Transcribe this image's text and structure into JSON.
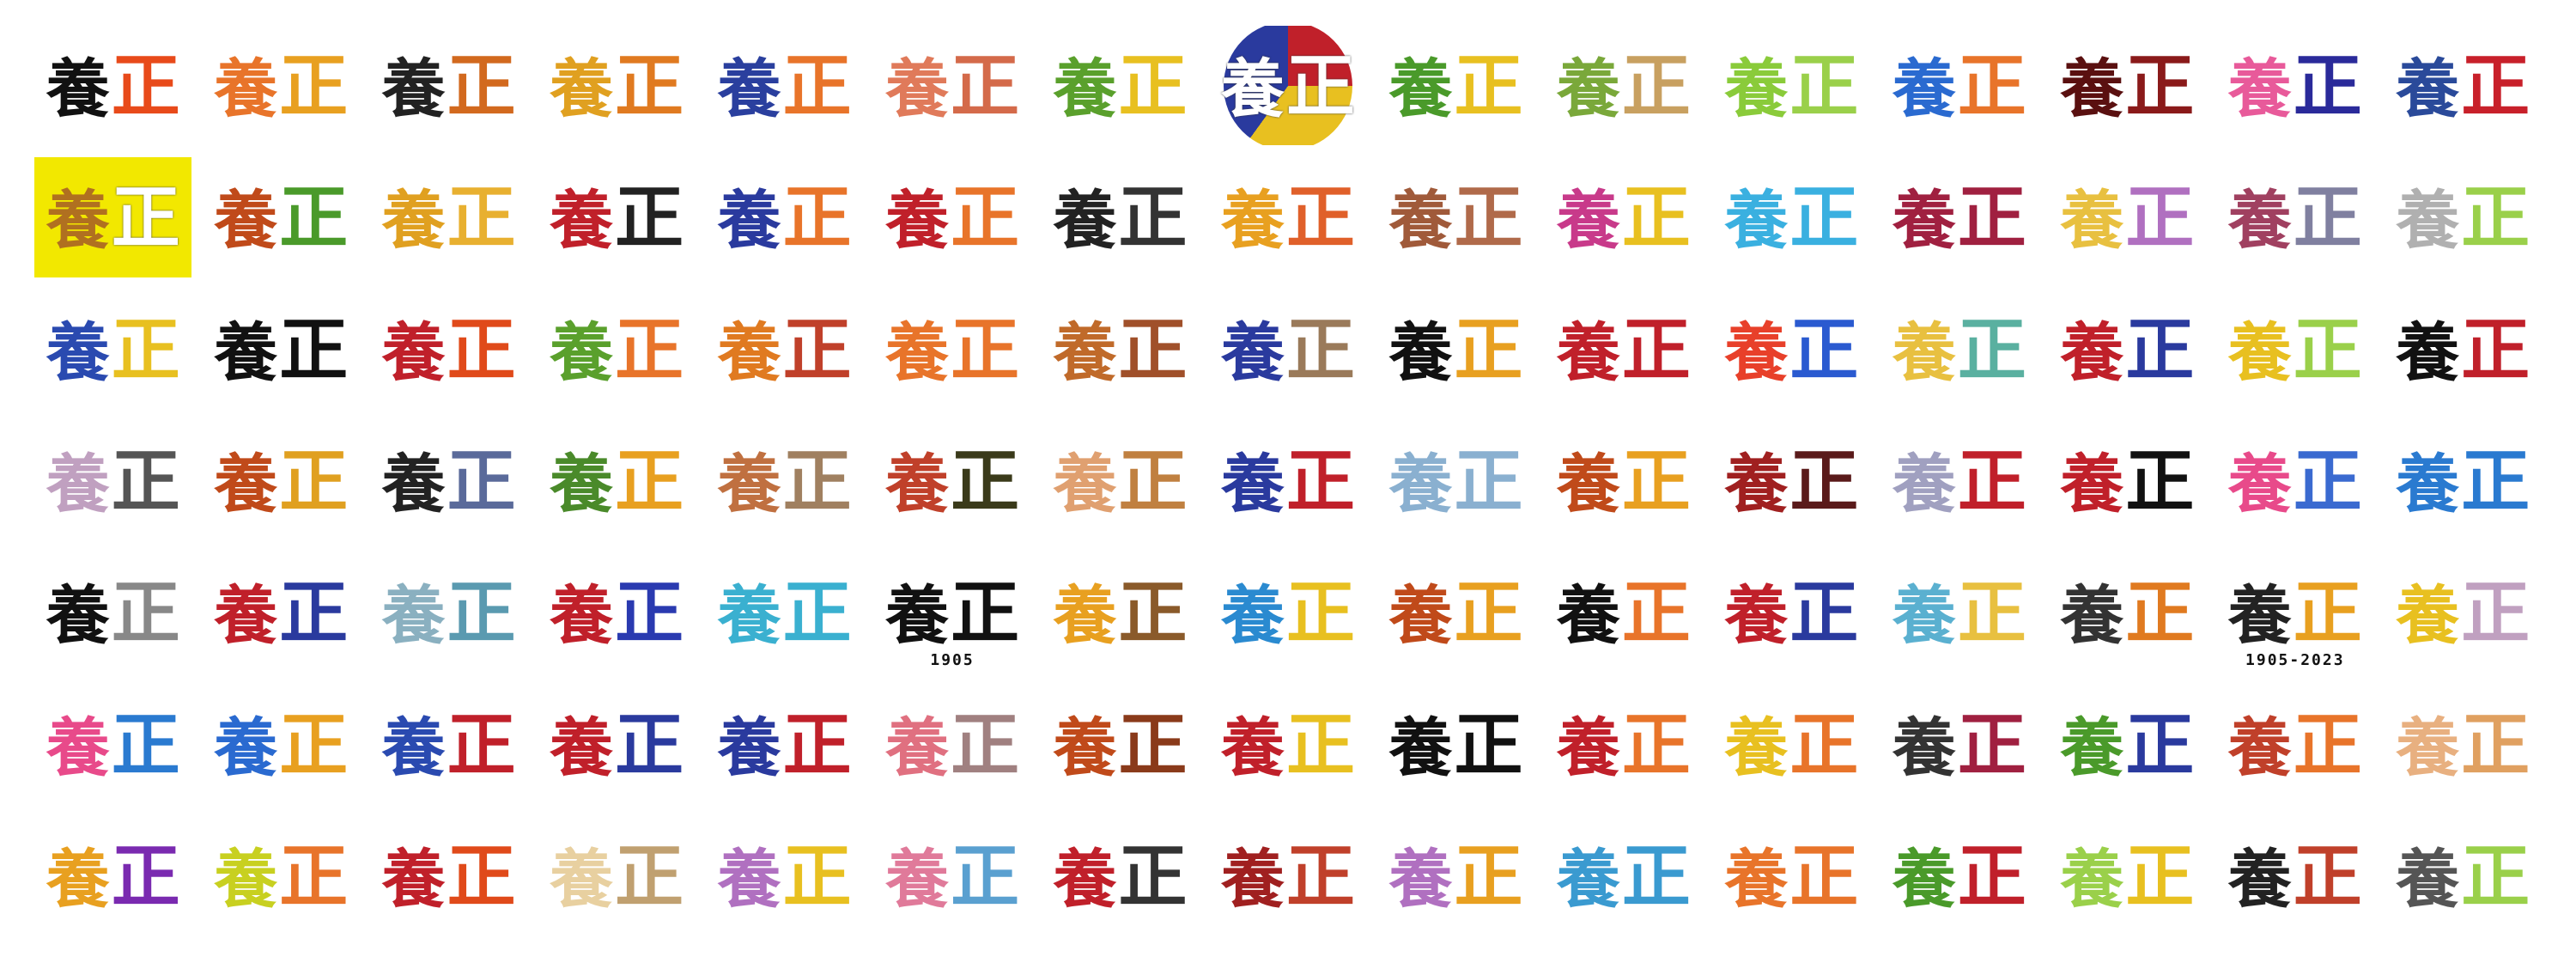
{
  "characters": {
    "first": "養",
    "second": "正"
  },
  "tiles": [
    {
      "a": "#111111",
      "b": "#e84a1a"
    },
    {
      "a": "#e8742a",
      "b": "#e8a020"
    },
    {
      "a": "#222222",
      "b": "#d2691e"
    },
    {
      "a": "#e0a020",
      "b": "#e07a20"
    },
    {
      "a": "#2a3f9e",
      "b": "#e8742a"
    },
    {
      "a": "#e07a5a",
      "b": "#d46a4a"
    },
    {
      "a": "#5aa02c",
      "b": "#e8c020",
      "bg": "#ffffff"
    },
    {
      "a": "#ffffff",
      "b": "#ffffff",
      "circle": "#c0202a"
    },
    {
      "a": "#4a9a2a",
      "b": "#e8c020"
    },
    {
      "a": "#7aa83a",
      "b": "#c8a060"
    },
    {
      "a": "#8acb3a",
      "b": "#9ad04a"
    },
    {
      "a": "#2a6ad0",
      "b": "#e8742a"
    },
    {
      "a": "#5a1010",
      "b": "#8a1a1a"
    },
    {
      "a": "#e85a9a",
      "b": "#2a2a9a"
    },
    {
      "a": "#2a4a9a",
      "b": "#c8202a"
    },
    {
      "a": "#b07020",
      "b": "#ffffff",
      "bg": "#f2e800"
    },
    {
      "a": "#c04a1a",
      "b": "#4a9a2a"
    },
    {
      "a": "#e0a020",
      "b": "#e8b030"
    },
    {
      "a": "#c0202a",
      "b": "#222222"
    },
    {
      "a": "#2a3a9e",
      "b": "#e8742a"
    },
    {
      "a": "#c0202a",
      "b": "#e8742a"
    },
    {
      "a": "#222222",
      "b": "#333333"
    },
    {
      "a": "#e8a020",
      "b": "#e0602a"
    },
    {
      "a": "#a05a3a",
      "b": "#b06a4a"
    },
    {
      "a": "#c83a8a",
      "b": "#e8c020"
    },
    {
      "a": "#3ab0e0",
      "b": "#3ab0e0"
    },
    {
      "a": "#a02040",
      "b": "#a02040"
    },
    {
      "a": "#e8c040",
      "b": "#b070c0"
    },
    {
      "a": "#a04060",
      "b": "#8080a0"
    },
    {
      "a": "#b0b0b0",
      "b": "#9ad04a"
    },
    {
      "a": "#2a4ab0",
      "b": "#e8c020"
    },
    {
      "a": "#111111",
      "b": "#111111"
    },
    {
      "a": "#c0202a",
      "b": "#e04a1a"
    },
    {
      "a": "#5aa02c",
      "b": "#e8742a"
    },
    {
      "a": "#e07a20",
      "b": "#c0402a"
    },
    {
      "a": "#e8742a",
      "b": "#e8742a"
    },
    {
      "a": "#c06a2a",
      "b": "#a0502a"
    },
    {
      "a": "#2a3a9e",
      "b": "#9a7a5a"
    },
    {
      "a": "#111111",
      "b": "#e8a020"
    },
    {
      "a": "#c0202a",
      "b": "#c0202a"
    },
    {
      "a": "#e8402a",
      "b": "#2a5ad0"
    },
    {
      "a": "#e8c040",
      "b": "#5ab0a0"
    },
    {
      "a": "#c0202a",
      "b": "#2a3a9e"
    },
    {
      "a": "#e8c020",
      "b": "#9ad04a"
    },
    {
      "a": "#111111",
      "b": "#c0202a"
    },
    {
      "a": "#c0a0c0",
      "b": "#555555"
    },
    {
      "a": "#c04a1a",
      "b": "#e0a020"
    },
    {
      "a": "#222222",
      "b": "#5a6a9a"
    },
    {
      "a": "#4a8a2a",
      "b": "#e8a020"
    },
    {
      "a": "#c07040",
      "b": "#a08060"
    },
    {
      "a": "#c0402a",
      "b": "#3a3a1a"
    },
    {
      "a": "#e0a070",
      "b": "#c08040"
    },
    {
      "a": "#2a3a9e",
      "b": "#c0202a"
    },
    {
      "a": "#8ab0d0",
      "b": "#8ab0d0"
    },
    {
      "a": "#c04a1a",
      "b": "#e8a020"
    },
    {
      "a": "#a02020",
      "b": "#5a1a1a"
    },
    {
      "a": "#a0a0c0",
      "b": "#c0202a"
    },
    {
      "a": "#c0202a",
      "b": "#111111"
    },
    {
      "a": "#e84a8a",
      "b": "#3a6ad0"
    },
    {
      "a": "#2a7ad0",
      "b": "#2a7ad0"
    },
    {
      "a": "#111111",
      "b": "#888888"
    },
    {
      "a": "#c0202a",
      "b": "#2a3a9e"
    },
    {
      "a": "#8ab0c0",
      "b": "#5a9ab0"
    },
    {
      "a": "#c0202a",
      "b": "#2a3ab0"
    },
    {
      "a": "#3ab0d0",
      "b": "#3ab0d0"
    },
    {
      "a": "#111111",
      "b": "#111111",
      "cap": "1905"
    },
    {
      "a": "#e8a020",
      "b": "#8a5a2a"
    },
    {
      "a": "#2a8ad0",
      "b": "#e8c020"
    },
    {
      "a": "#c04a1a",
      "b": "#e8a020"
    },
    {
      "a": "#111111",
      "b": "#e8742a"
    },
    {
      "a": "#c0202a",
      "b": "#2a3a9e"
    },
    {
      "a": "#5ab0d0",
      "b": "#e8c040"
    },
    {
      "a": "#333333",
      "b": "#e07a20"
    },
    {
      "a": "#222222",
      "b": "#e8a020",
      "cap": "1905-2023"
    },
    {
      "a": "#e8c020",
      "b": "#c0a0c0"
    },
    {
      "a": "#e84a8a",
      "b": "#2a7ad0"
    },
    {
      "a": "#2a6ad0",
      "b": "#e8a020"
    },
    {
      "a": "#2a4ab0",
      "b": "#c0202a"
    },
    {
      "a": "#c0202a",
      "b": "#2a3a9e"
    },
    {
      "a": "#2a3a9e",
      "b": "#c0202a"
    },
    {
      "a": "#e07080",
      "b": "#a08080"
    },
    {
      "a": "#c04a1a",
      "b": "#8a3a1a"
    },
    {
      "a": "#c0202a",
      "b": "#e8c020"
    },
    {
      "a": "#111111",
      "b": "#111111"
    },
    {
      "a": "#c0202a",
      "b": "#e8742a"
    },
    {
      "a": "#e8c020",
      "b": "#e8742a"
    },
    {
      "a": "#333333",
      "b": "#a02040"
    },
    {
      "a": "#4a9a2a",
      "b": "#2a3a9e"
    },
    {
      "a": "#c0402a",
      "b": "#e8742a"
    },
    {
      "a": "#e8b080",
      "b": "#e0a060"
    },
    {
      "a": "#e8a020",
      "b": "#7a2ab0"
    },
    {
      "a": "#c8d020",
      "b": "#e8742a"
    },
    {
      "a": "#c0202a",
      "b": "#e04a1a"
    },
    {
      "a": "#e8d0a0",
      "b": "#c0a070"
    },
    {
      "a": "#b070c0",
      "b": "#e8c020"
    },
    {
      "a": "#e07a9a",
      "b": "#5aa0d0"
    },
    {
      "a": "#c0202a",
      "b": "#333333"
    },
    {
      "a": "#a02020",
      "b": "#c0402a"
    },
    {
      "a": "#b070c0",
      "b": "#e8a020"
    },
    {
      "a": "#3a9ad0",
      "b": "#3a9ad0"
    },
    {
      "a": "#e8742a",
      "b": "#e8742a"
    },
    {
      "a": "#4a9a2a",
      "b": "#c0202a"
    },
    {
      "a": "#9ad04a",
      "b": "#e8c020"
    },
    {
      "a": "#222222",
      "b": "#c0402a"
    },
    {
      "a": "#555555",
      "b": "#9ad04a"
    }
  ]
}
